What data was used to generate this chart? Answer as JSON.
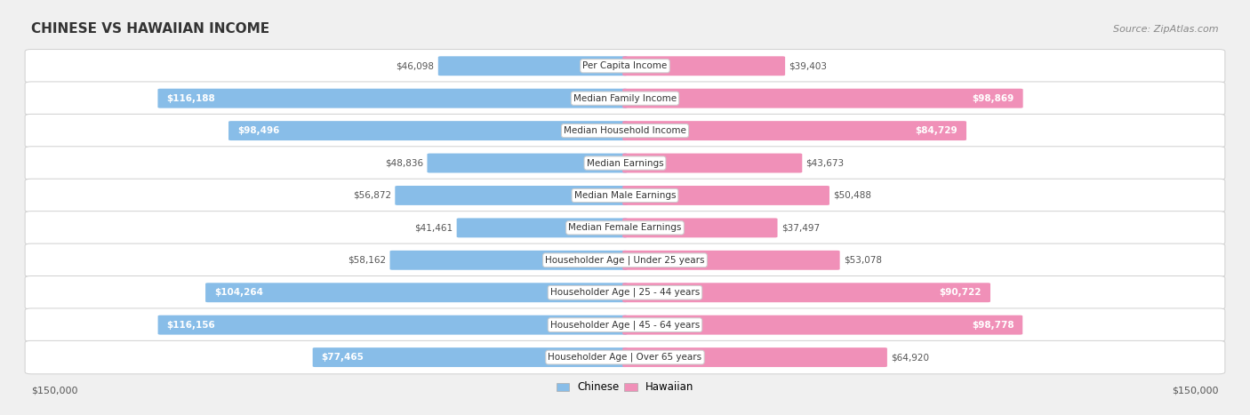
{
  "title": "CHINESE VS HAWAIIAN INCOME",
  "source": "Source: ZipAtlas.com",
  "categories": [
    "Per Capita Income",
    "Median Family Income",
    "Median Household Income",
    "Median Earnings",
    "Median Male Earnings",
    "Median Female Earnings",
    "Householder Age | Under 25 years",
    "Householder Age | 25 - 44 years",
    "Householder Age | 45 - 64 years",
    "Householder Age | Over 65 years"
  ],
  "chinese_values": [
    46098,
    116188,
    98496,
    48836,
    56872,
    41461,
    58162,
    104264,
    116156,
    77465
  ],
  "hawaiian_values": [
    39403,
    98869,
    84729,
    43673,
    50488,
    37497,
    53078,
    90722,
    98778,
    64920
  ],
  "chinese_color": "#88BDE8",
  "hawaiian_color": "#F090B8",
  "max_value": 150000,
  "bg_color": "#f0f0f0",
  "row_bg_light": "#fafafa",
  "row_bg_dark": "#eeeeee",
  "title_fontsize": 11,
  "source_fontsize": 8,
  "value_fontsize": 7.5,
  "category_fontsize": 7.5,
  "label_threshold": 65000
}
